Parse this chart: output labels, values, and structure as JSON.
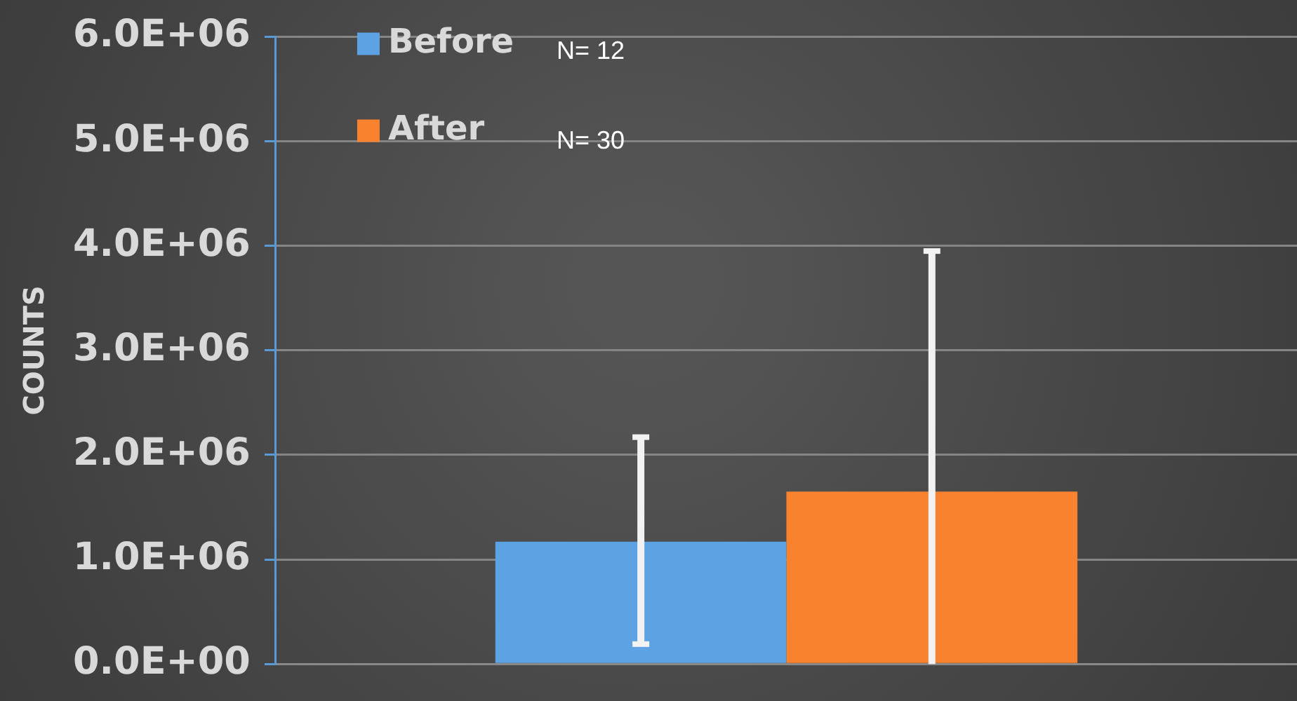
{
  "chart_data": {
    "type": "bar",
    "ylabel": "COUNTS",
    "categories": [
      null
    ],
    "series": [
      {
        "name": "Before",
        "color": "#5da3e4",
        "values": [
          1170000
        ],
        "errors": [
          [
            190000,
            2170000
          ]
        ]
      },
      {
        "name": "After",
        "color": "#f8822e",
        "values": [
          1650000
        ],
        "errors": [
          [
            0,
            3950000
          ]
        ]
      }
    ],
    "annotations": [
      "N= 12",
      "N= 30"
    ],
    "ylim": [
      0,
      6000000
    ],
    "yticks": [
      {
        "value": 0,
        "label": "0.0E+00"
      },
      {
        "value": 1000000,
        "label": "1.0E+06"
      },
      {
        "value": 2000000,
        "label": "2.0E+06"
      },
      {
        "value": 3000000,
        "label": "3.0E+06"
      },
      {
        "value": 4000000,
        "label": "4.0E+06"
      },
      {
        "value": 5000000,
        "label": "5.0E+06"
      },
      {
        "value": 6000000,
        "label": "6.0E+06"
      }
    ],
    "grid": "y",
    "legend": "top left"
  }
}
